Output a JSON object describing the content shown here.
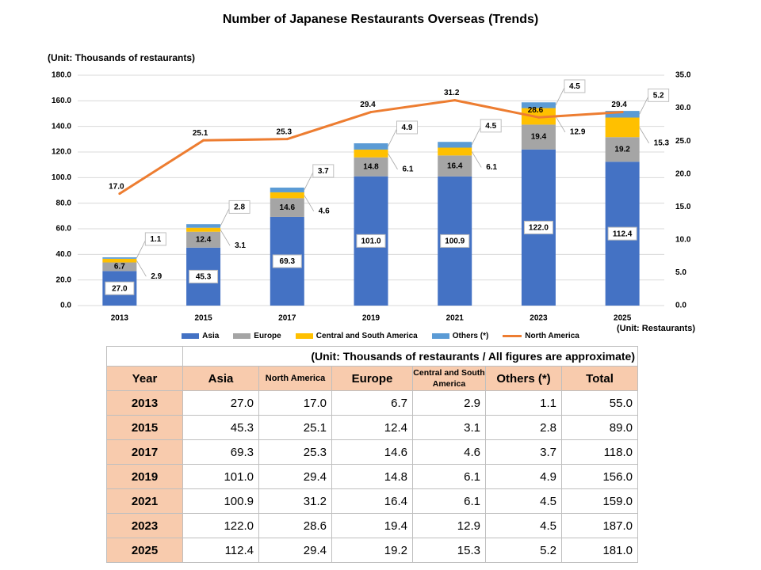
{
  "title": "Number of Japanese Restaurants Overseas (Trends)",
  "unit_left": "(Unit: Thousands of restaurants)",
  "unit_right": "(Unit:  Restaurants)",
  "colors": {
    "Asia": "#4472c4",
    "Europe": "#a5a5a5",
    "Central and South America": "#ffc000",
    "Others (*)": "#5b9bd5",
    "North America": "#ed7d31"
  },
  "legend": [
    "Asia",
    "Europe",
    "Central and South America",
    "Others (*)",
    "North America"
  ],
  "chart_data": {
    "type": "bar",
    "categories": [
      "2013",
      "2015",
      "2017",
      "2019",
      "2021",
      "2023",
      "2025"
    ],
    "stacked": true,
    "series": [
      {
        "name": "Asia",
        "values": [
          27.0,
          45.3,
          69.3,
          101.0,
          100.9,
          122.0,
          112.4
        ]
      },
      {
        "name": "Europe",
        "values": [
          6.7,
          12.4,
          14.6,
          14.8,
          16.4,
          19.4,
          19.2
        ]
      },
      {
        "name": "Central and South America",
        "values": [
          2.9,
          3.1,
          4.6,
          6.1,
          6.1,
          12.9,
          15.3
        ]
      },
      {
        "name": "Others (*)",
        "values": [
          1.1,
          2.8,
          3.7,
          4.9,
          4.5,
          4.5,
          5.2
        ]
      }
    ],
    "line_series": {
      "name": "North America",
      "values": [
        17.0,
        25.1,
        25.3,
        29.4,
        31.2,
        28.6,
        29.4
      ],
      "axis": "right"
    },
    "ylim": [
      0,
      180
    ],
    "yticks": [
      "0.0",
      "20.0",
      "40.0",
      "60.0",
      "80.0",
      "100.0",
      "120.0",
      "140.0",
      "160.0",
      "180.0"
    ],
    "y2lim": [
      0,
      35
    ],
    "y2ticks": [
      "0.0",
      "5.0",
      "10.0",
      "15.0",
      "20.0",
      "25.0",
      "30.0",
      "35.0"
    ],
    "grid": true,
    "legend_position": "bottom"
  },
  "table": {
    "unit_note": "(Unit: Thousands of restaurants / All figures are approximate)",
    "headers": [
      "Year",
      "Asia",
      "North America",
      "Europe",
      "Central and South America",
      "Others (*)",
      "Total"
    ],
    "rows": [
      [
        "2013",
        "27.0",
        "17.0",
        "6.7",
        "2.9",
        "1.1",
        "55.0"
      ],
      [
        "2015",
        "45.3",
        "25.1",
        "12.4",
        "3.1",
        "2.8",
        "89.0"
      ],
      [
        "2017",
        "69.3",
        "25.3",
        "14.6",
        "4.6",
        "3.7",
        "118.0"
      ],
      [
        "2019",
        "101.0",
        "29.4",
        "14.8",
        "6.1",
        "4.9",
        "156.0"
      ],
      [
        "2021",
        "100.9",
        "31.2",
        "16.4",
        "6.1",
        "4.5",
        "159.0"
      ],
      [
        "2023",
        "122.0",
        "28.6",
        "19.4",
        "12.9",
        "4.5",
        "187.0"
      ],
      [
        "2025",
        "112.4",
        "29.4",
        "19.2",
        "15.3",
        "5.2",
        "181.0"
      ]
    ]
  }
}
